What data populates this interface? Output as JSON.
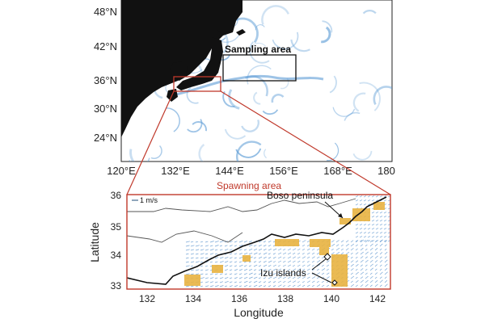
{
  "top_map": {
    "lat_ticks": [
      "48°N",
      "42°N",
      "36°N",
      "30°N",
      "24°N"
    ],
    "lon_ticks": [
      "120°E",
      "132°E",
      "144°E",
      "156°E",
      "168°E",
      "180"
    ],
    "sampling_label": "Sampling area",
    "current_color": "#5b9bd5",
    "land_color": "#111111"
  },
  "connector_label": "Spawning area",
  "bottom_map": {
    "y_ticks": [
      "36",
      "35",
      "34",
      "33"
    ],
    "x_ticks": [
      "132",
      "134",
      "136",
      "138",
      "140",
      "142"
    ],
    "xlabel": "Longitude",
    "ylabel": "Latitude",
    "scale_label": "1 m/s",
    "boso_label": "Boso peninsula",
    "izu_label": "Izu islands",
    "spawn_color": "#e8b341",
    "frame_color": "#c0392b"
  }
}
